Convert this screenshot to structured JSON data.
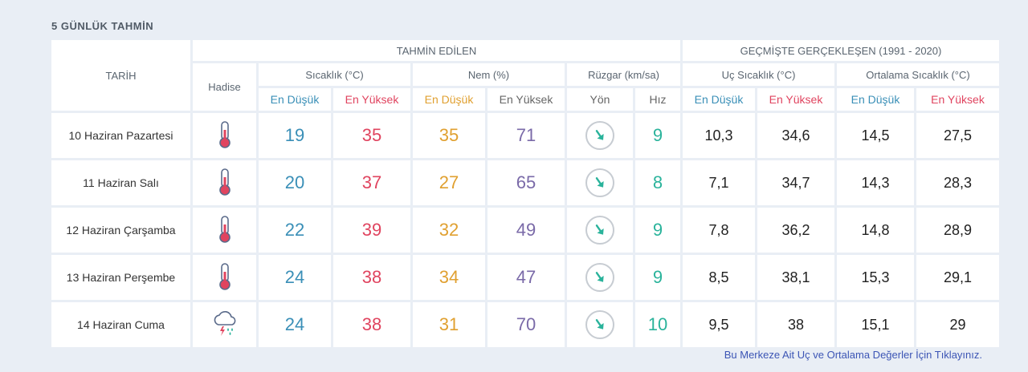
{
  "title": "5 GÜNLÜK TAHMİN",
  "headers": {
    "date": "TARİH",
    "predicted": "TAHMİN EDİLEN",
    "historical": "GEÇMİŞTE GERÇEKLEŞEN (1991 - 2020)",
    "event": "Hadise",
    "temp": "Sıcaklık (°C)",
    "humidity": "Nem (%)",
    "wind": "Rüzgar (km/sa)",
    "extreme_temp": "Uç Sıcaklık (°C)",
    "avg_temp": "Ortalama Sıcaklık (°C)",
    "low": "En Düşük",
    "high": "En Yüksek",
    "direction": "Yön",
    "speed": "Hız"
  },
  "rows": [
    {
      "date": "10 Haziran Pazartesi",
      "icon": "thermometer-icon",
      "tmin": "19",
      "tmax": "35",
      "hmin": "35",
      "hmax": "71",
      "wind": "9",
      "xmin": "10,3",
      "xmax": "34,6",
      "amin": "14,5",
      "amax": "27,5"
    },
    {
      "date": "11 Haziran Salı",
      "icon": "thermometer-icon",
      "tmin": "20",
      "tmax": "37",
      "hmin": "27",
      "hmax": "65",
      "wind": "8",
      "xmin": "7,1",
      "xmax": "34,7",
      "amin": "14,3",
      "amax": "28,3"
    },
    {
      "date": "12 Haziran Çarşamba",
      "icon": "thermometer-icon",
      "tmin": "22",
      "tmax": "39",
      "hmin": "32",
      "hmax": "49",
      "wind": "9",
      "xmin": "7,8",
      "xmax": "36,2",
      "amin": "14,8",
      "amax": "28,9"
    },
    {
      "date": "13 Haziran Perşembe",
      "icon": "thermometer-icon",
      "tmin": "24",
      "tmax": "38",
      "hmin": "34",
      "hmax": "47",
      "wind": "9",
      "xmin": "8,5",
      "xmax": "38,1",
      "amin": "15,3",
      "amax": "29,1"
    },
    {
      "date": "14 Haziran Cuma",
      "icon": "thunderstorm-icon",
      "tmin": "24",
      "tmax": "38",
      "hmin": "31",
      "hmax": "70",
      "wind": "10",
      "xmin": "9,5",
      "xmax": "38",
      "amin": "15,1",
      "amax": "29"
    }
  ],
  "link": "Bu Merkeze Ait Uç ve Ortalama Değerler İçin Tıklayınız.",
  "colors": {
    "low": "#3a8fb7",
    "high": "#e0445f",
    "humidity_low": "#e0a030",
    "humidity_high": "#7a6aa8",
    "wind": "#2ab39b"
  }
}
